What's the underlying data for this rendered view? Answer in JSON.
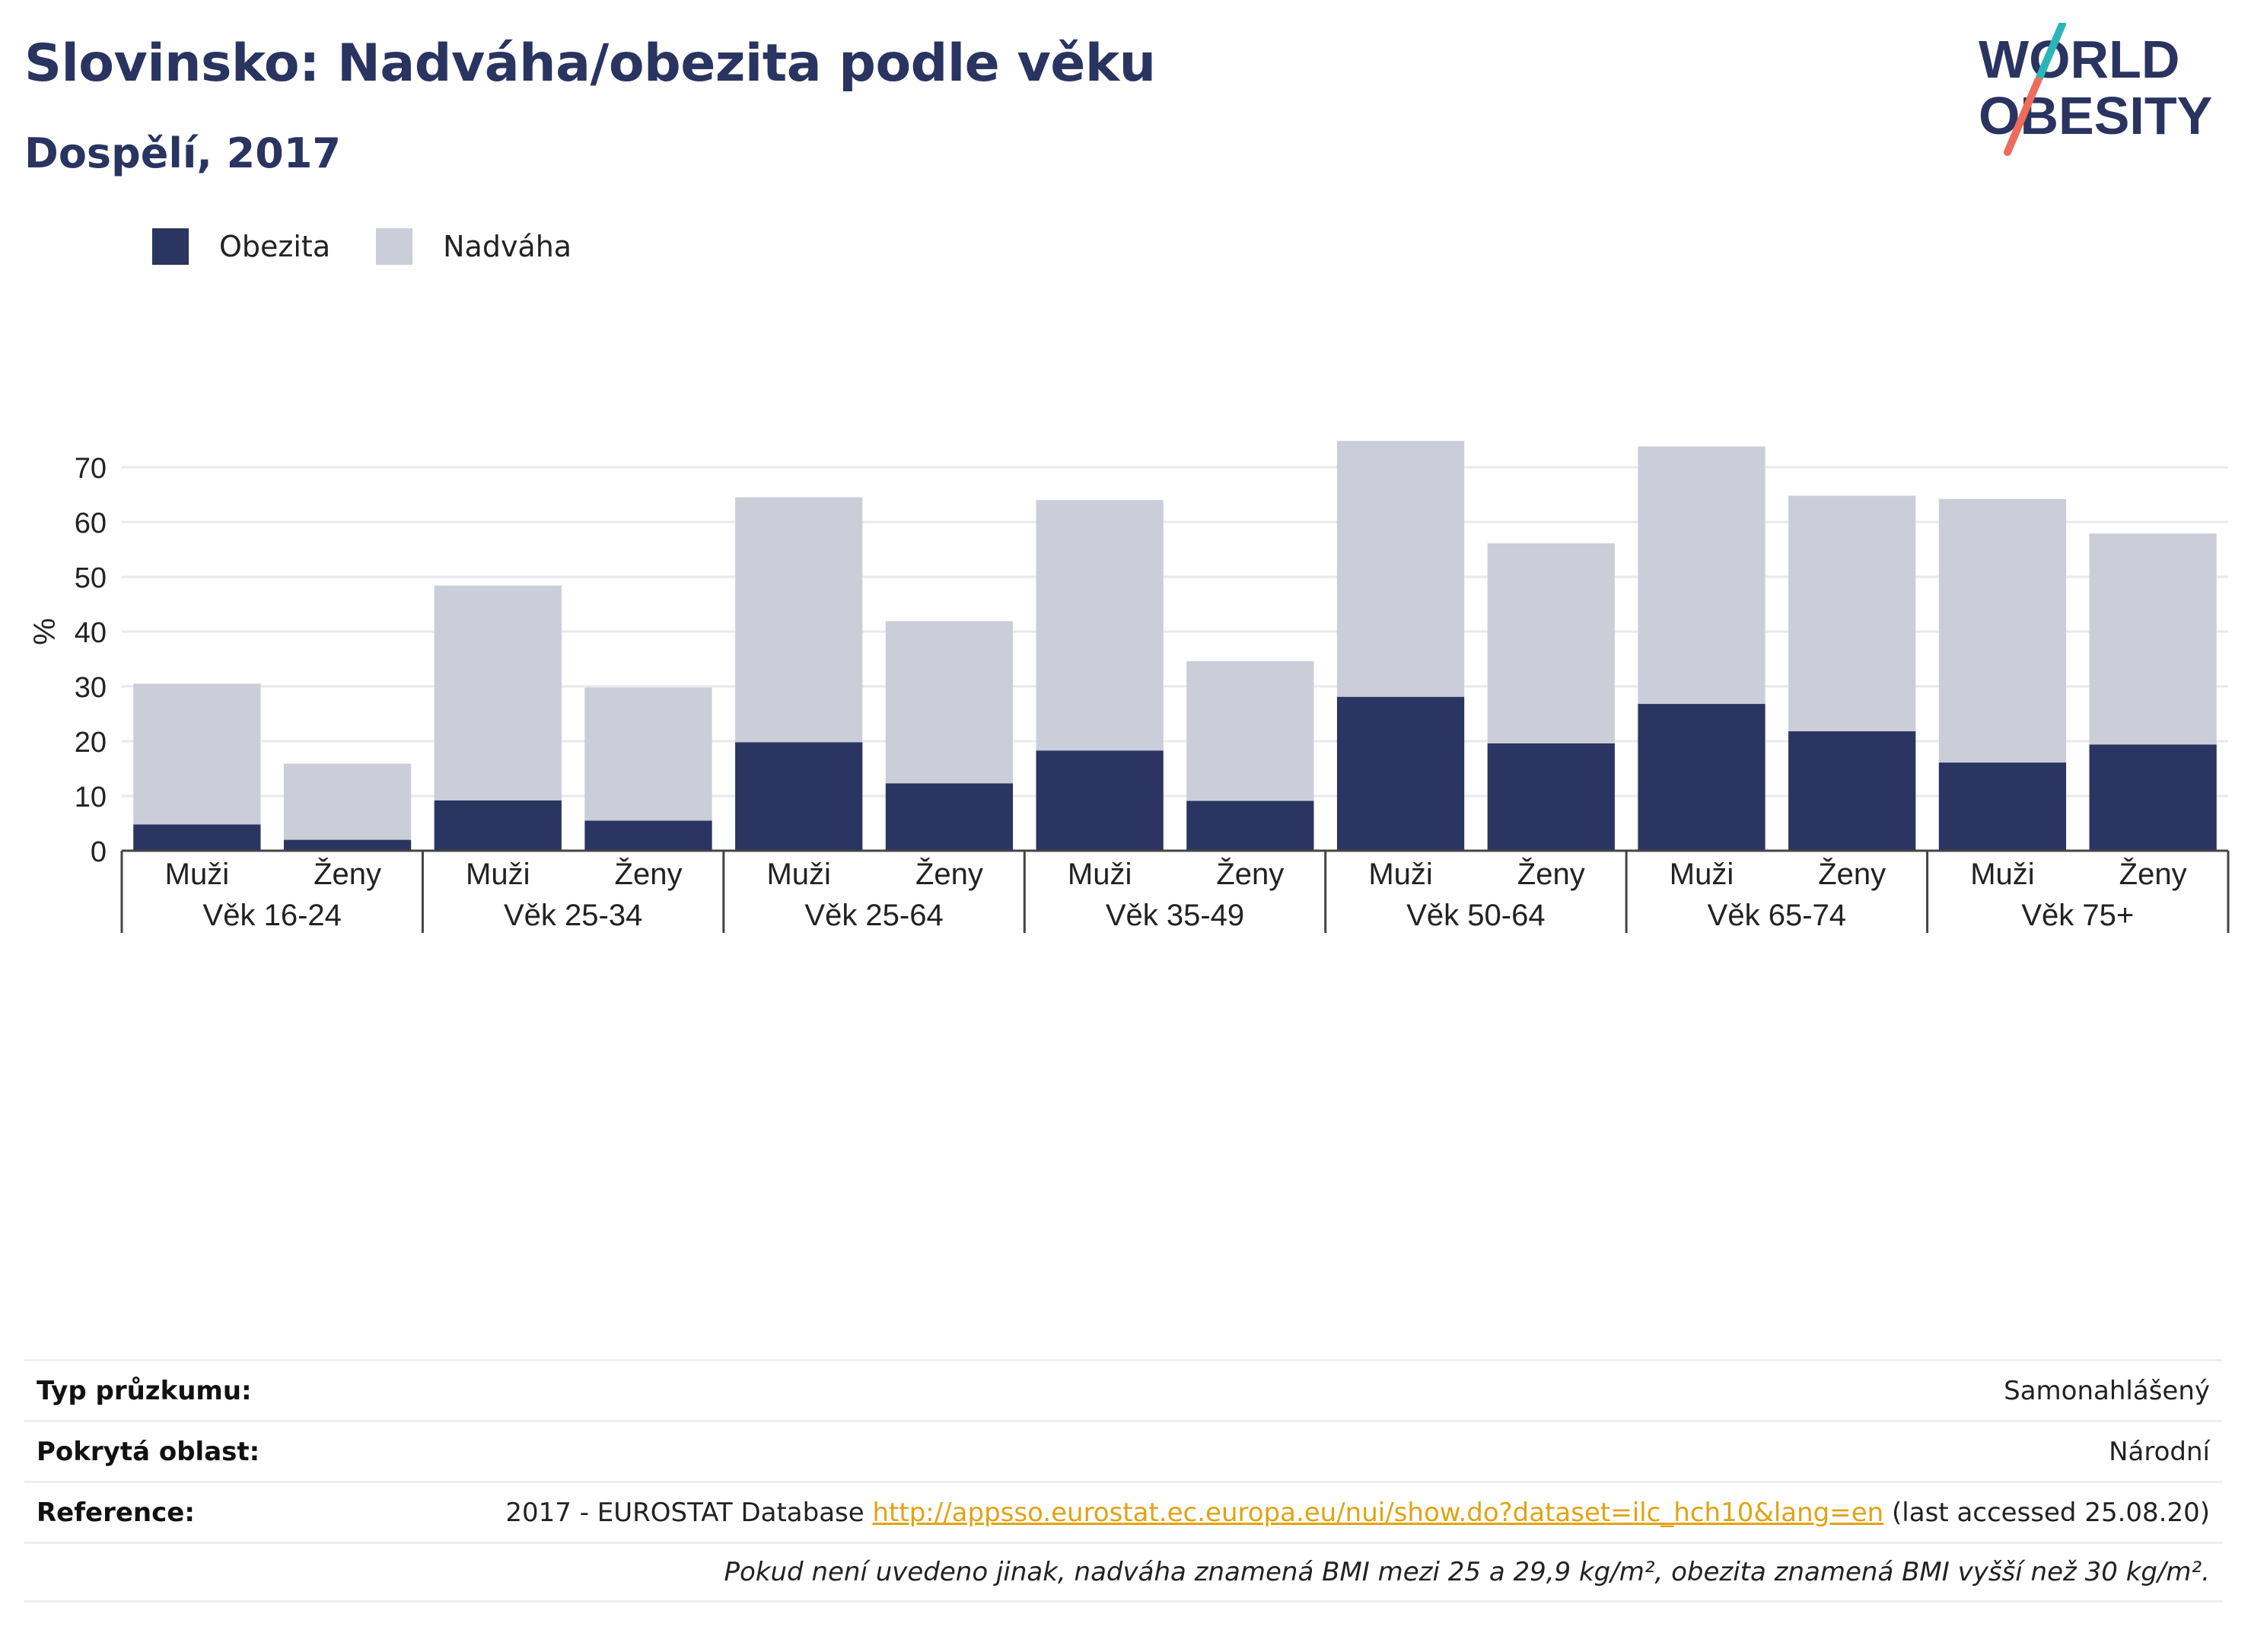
{
  "header": {
    "title": "Slovinsko: Nadváha/obezita podle věku",
    "subtitle": "Dospělí, 2017"
  },
  "logo": {
    "line1": "WORLD",
    "line2": "OBESITY",
    "accent_teal": "#2bb5b8",
    "accent_coral": "#ef6b5b",
    "text_color": "#2a3461"
  },
  "legend": {
    "items": [
      {
        "label": "Obezita",
        "color": "#2a3562"
      },
      {
        "label": "Nadváha",
        "color": "#cbcdd9"
      }
    ]
  },
  "chart_data": {
    "type": "bar",
    "stacked": true,
    "ylabel": "%",
    "ylim": [
      0,
      75
    ],
    "yticks": [
      0,
      10,
      20,
      30,
      40,
      50,
      60,
      70
    ],
    "grid": true,
    "legend_position": "top-left",
    "groups": [
      "Věk 16-24",
      "Věk 25-34",
      "Věk 25-64",
      "Věk 35-49",
      "Věk 50-64",
      "Věk 65-74",
      "Věk 75+"
    ],
    "categories": [
      "Muži",
      "Ženy",
      "Muži",
      "Ženy",
      "Muži",
      "Ženy",
      "Muži",
      "Ženy",
      "Muži",
      "Ženy",
      "Muži",
      "Ženy",
      "Muži",
      "Ženy"
    ],
    "series": [
      {
        "name": "Obezita",
        "color": "#2a3562",
        "values": [
          4.8,
          2.0,
          9.2,
          5.5,
          19.8,
          12.3,
          18.3,
          9.1,
          28.1,
          19.6,
          26.8,
          21.8,
          16.1,
          19.4
        ]
      },
      {
        "name": "Nadváha",
        "color": "#cbcdd9",
        "values": [
          25.7,
          13.9,
          39.2,
          24.3,
          44.7,
          29.6,
          45.7,
          25.5,
          46.7,
          36.5,
          47.0,
          43.0,
          48.1,
          38.5
        ]
      }
    ]
  },
  "info": {
    "survey_label": "Typ průzkumu:",
    "survey_value": "Samonahlášený",
    "coverage_label": "Pokrytá oblast:",
    "coverage_value": "Národní",
    "reference_label": "Reference:",
    "reference_prefix": "2017 - EUROSTAT Database ",
    "reference_link": "http://appsso.eurostat.ec.europa.eu/nui/show.do?dataset=ilc_hch10&lang=en",
    "reference_suffix": " (last accessed 25.08.20)",
    "note": "Pokud není uvedeno jinak, nadváha znamená BMI mezi 25 a 29,9 kg/m², obezita znamená BMI vyšší než 30 kg/m²."
  }
}
